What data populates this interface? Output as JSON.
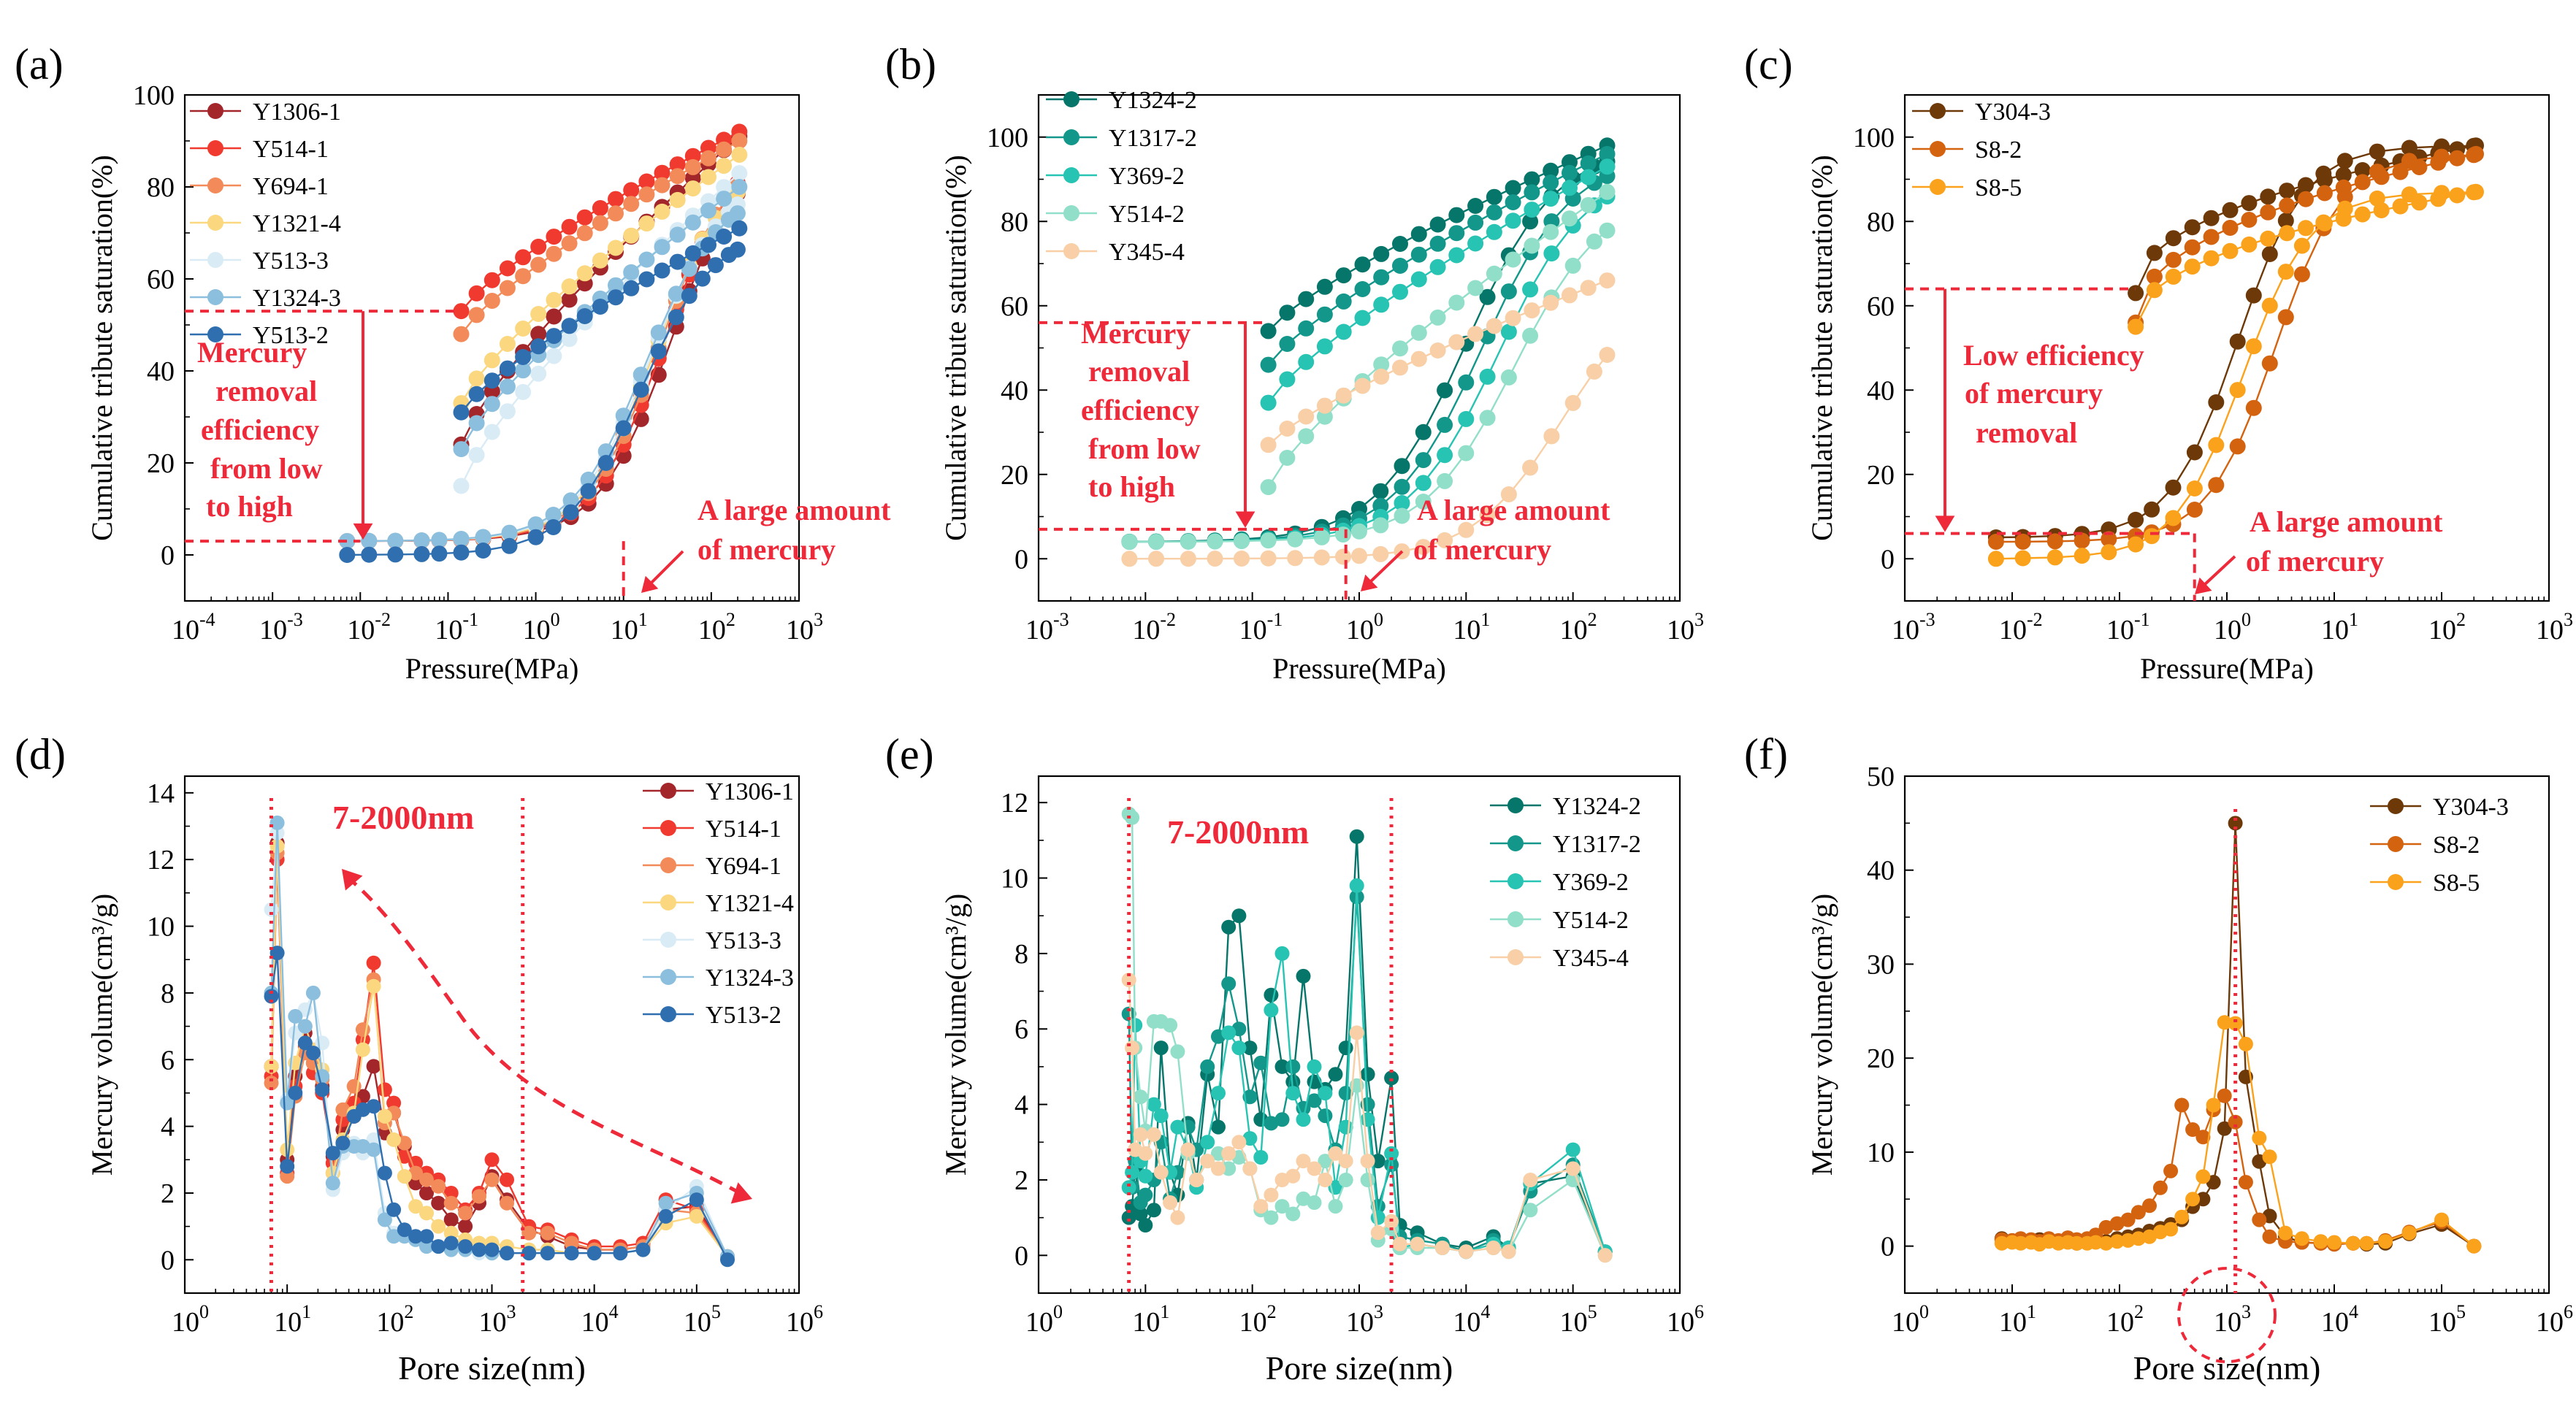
{
  "palettes": {
    "red": [
      "#a3262b",
      "#f13a2f",
      "#f28a59",
      "#fbd77f",
      "#d9ecf6",
      "#8cbfde",
      "#2f6fb0"
    ],
    "teal": [
      "#06756a",
      "#12978a",
      "#27c3b3",
      "#92dfc9",
      "#f8cfa6"
    ],
    "orange": [
      "#6e3908",
      "#d46310",
      "#fba21c"
    ],
    "annotation": "#ee2a3a"
  },
  "chart_data": [
    {
      "panel": "(a)",
      "type": "line",
      "xscale": "log",
      "xlim": [
        0.0001,
        1000
      ],
      "ylim": [
        -10,
        100
      ],
      "xlabel": "Pressure(MPa)",
      "ylabel": "Cumulative tribute saturation(%)",
      "xticks": [
        {
          "b": "10",
          "e": "-4"
        },
        {
          "b": "10",
          "e": "-3"
        },
        {
          "b": "10",
          "e": "-2"
        },
        {
          "b": "10",
          "e": "-1"
        },
        {
          "b": "10",
          "e": "0"
        },
        {
          "b": "10",
          "e": "1"
        },
        {
          "b": "10",
          "e": "2"
        },
        {
          "b": "10",
          "e": "3"
        }
      ],
      "yticks": [
        "0",
        "20",
        "40",
        "60",
        "80",
        "100"
      ],
      "ytick_values": [
        0,
        20,
        40,
        60,
        80,
        100
      ],
      "legend_position": "top-left",
      "series": [
        {
          "name": "Y1306-1",
          "start_intrusion": 3,
          "end_intrusion": 91,
          "start_extrusion": 24
        },
        {
          "name": "Y514-1",
          "start_intrusion": 3,
          "end_intrusion": 92,
          "start_extrusion": 53
        },
        {
          "name": "Y694-1",
          "start_intrusion": 3,
          "end_intrusion": 90,
          "start_extrusion": 48
        },
        {
          "name": "Y1321-4",
          "start_intrusion": 3,
          "end_intrusion": 87,
          "start_extrusion": 33
        },
        {
          "name": "Y513-3",
          "start_intrusion": 3,
          "end_intrusion": 83,
          "start_extrusion": 15
        },
        {
          "name": "Y1324-3",
          "start_intrusion": 3,
          "end_intrusion": 80,
          "start_extrusion": 23
        },
        {
          "name": "Y513-2",
          "start_intrusion": 0,
          "end_intrusion": 71,
          "start_extrusion": 31
        }
      ],
      "annotations": [
        "Mercury",
        "removal",
        "efficiency",
        "from low",
        "to high",
        "A large amount",
        "of mercury"
      ]
    },
    {
      "panel": "(b)",
      "type": "line",
      "xscale": "log",
      "xlim": [
        0.001,
        1000
      ],
      "ylim": [
        -10,
        110
      ],
      "xlabel": "Pressure(MPa)",
      "ylabel": "Cumulative tribute saturation(%)",
      "xticks": [
        {
          "b": "10",
          "e": "-3"
        },
        {
          "b": "10",
          "e": "-2"
        },
        {
          "b": "10",
          "e": "-1"
        },
        {
          "b": "10",
          "e": "0"
        },
        {
          "b": "10",
          "e": "1"
        },
        {
          "b": "10",
          "e": "2"
        },
        {
          "b": "10",
          "e": "3"
        }
      ],
      "yticks": [
        "0",
        "20",
        "40",
        "60",
        "80",
        "100"
      ],
      "ytick_values": [
        0,
        20,
        40,
        60,
        80,
        100
      ],
      "legend_position": "top-left",
      "series": [
        {
          "name": "Y1324-2",
          "start_intrusion": 4,
          "end_intrusion": 98,
          "start_extrusion": 54
        },
        {
          "name": "Y1317-2",
          "start_intrusion": 4,
          "end_intrusion": 96,
          "start_extrusion": 46
        },
        {
          "name": "Y369-2",
          "start_intrusion": 4,
          "end_intrusion": 93,
          "start_extrusion": 37
        },
        {
          "name": "Y514-2",
          "start_intrusion": 4,
          "end_intrusion": 87,
          "start_extrusion": 17
        },
        {
          "name": "Y345-4",
          "start_intrusion": 0,
          "end_intrusion": 66,
          "start_extrusion": 27
        }
      ],
      "annotations": [
        "Mercury",
        "removal",
        "efficiency",
        "from low",
        "to high",
        "A large amount",
        "of mercury"
      ]
    },
    {
      "panel": "(c)",
      "type": "line",
      "xscale": "log",
      "xlim": [
        0.001,
        1000
      ],
      "ylim": [
        -10,
        110
      ],
      "xlabel": "Pressure(MPa)",
      "ylabel": "Cumulative tribute saturation(%)",
      "xticks": [
        {
          "b": "10",
          "e": "-3"
        },
        {
          "b": "10",
          "e": "-2"
        },
        {
          "b": "10",
          "e": "-1"
        },
        {
          "b": "10",
          "e": "0"
        },
        {
          "b": "10",
          "e": "1"
        },
        {
          "b": "10",
          "e": "2"
        },
        {
          "b": "10",
          "e": "3"
        }
      ],
      "yticks": [
        "0",
        "20",
        "40",
        "60",
        "80",
        "100"
      ],
      "ytick_values": [
        0,
        20,
        40,
        60,
        80,
        100
      ],
      "legend_position": "top-left",
      "series": [
        {
          "name": "Y304-3",
          "start_intrusion": 5,
          "end_intrusion": 98,
          "start_extrusion": 63
        },
        {
          "name": "S8-2",
          "start_intrusion": 4,
          "end_intrusion": 96,
          "start_extrusion": 56
        },
        {
          "name": "S8-5",
          "start_intrusion": 0,
          "end_intrusion": 87,
          "start_extrusion": 55
        }
      ],
      "annotations": [
        "Low efficiency",
        "of mercury",
        "removal",
        "A large amount",
        "of mercury"
      ]
    },
    {
      "panel": "(d)",
      "type": "line",
      "xscale": "log",
      "xlim": [
        1,
        1000000
      ],
      "ylim": [
        -1,
        14.5
      ],
      "xlabel": "Pore size(nm)",
      "ylabel": "Mercury volume(cm³/g)",
      "xticks": [
        {
          "b": "10",
          "e": "0"
        },
        {
          "b": "10",
          "e": "1"
        },
        {
          "b": "10",
          "e": "2"
        },
        {
          "b": "10",
          "e": "3"
        },
        {
          "b": "10",
          "e": "4"
        },
        {
          "b": "10",
          "e": "5"
        },
        {
          "b": "10",
          "e": "6"
        }
      ],
      "yticks": [
        "0",
        "2",
        "4",
        "6",
        "8",
        "10",
        "12",
        "14"
      ],
      "ytick_values": [
        0,
        2,
        4,
        6,
        8,
        10,
        12,
        14
      ],
      "legend_position": "top-right",
      "series_names": [
        "Y1306-1",
        "Y514-1",
        "Y694-1",
        "Y1321-4",
        "Y513-3",
        "Y1324-3",
        "Y513-2"
      ],
      "x": [
        7,
        8,
        10,
        12,
        15,
        18,
        22,
        28,
        35,
        45,
        55,
        70,
        90,
        110,
        140,
        180,
        230,
        300,
        400,
        550,
        750,
        1000,
        1400,
        2300,
        3500,
        6000,
        10000,
        18000,
        30000,
        50000,
        100000,
        200000
      ],
      "series": [
        [
          5.8,
          12.5,
          3.0,
          5.5,
          6.8,
          5.9,
          5.2,
          3.1,
          3.9,
          4.3,
          4.9,
          5.8,
          3.8,
          4.4,
          3.4,
          2.3,
          2.0,
          1.7,
          1.2,
          1.0,
          1.7,
          2.5,
          1.8,
          0.9,
          0.7,
          0.4,
          0.3,
          0.3,
          0.4,
          1.5,
          1.6,
          0.1
        ],
        [
          5.5,
          12.0,
          2.6,
          5.2,
          6.4,
          5.6,
          5.0,
          2.9,
          4.2,
          4.7,
          6.6,
          8.9,
          5.1,
          4.7,
          3.1,
          2.9,
          2.6,
          2.4,
          2.0,
          1.5,
          2.0,
          3.0,
          2.4,
          1.0,
          0.9,
          0.6,
          0.4,
          0.4,
          0.5,
          1.8,
          1.5,
          0.1
        ],
        [
          5.3,
          12.2,
          2.5,
          4.9,
          6.2,
          5.9,
          5.4,
          2.6,
          4.5,
          5.2,
          6.9,
          8.4,
          4.1,
          4.4,
          3.5,
          2.6,
          2.4,
          2.2,
          1.7,
          1.4,
          1.9,
          2.4,
          1.7,
          0.8,
          0.8,
          0.5,
          0.3,
          0.3,
          0.4,
          1.5,
          1.4,
          0.1
        ],
        [
          5.8,
          12.4,
          3.3,
          5.9,
          7.0,
          6.3,
          5.7,
          2.6,
          3.6,
          4.4,
          6.3,
          8.2,
          4.3,
          3.6,
          2.5,
          1.6,
          1.4,
          1.0,
          0.8,
          0.6,
          0.5,
          0.5,
          0.4,
          0.3,
          0.3,
          0.2,
          0.2,
          0.2,
          0.3,
          1.1,
          1.3,
          0.1
        ],
        [
          10.5,
          12.8,
          4.8,
          6.8,
          7.5,
          8.0,
          6.5,
          2.1,
          3.2,
          3.5,
          3.2,
          3.6,
          1.4,
          0.8,
          0.8,
          0.6,
          0.5,
          0.4,
          0.3,
          0.3,
          0.2,
          0.2,
          0.2,
          0.2,
          0.2,
          0.2,
          0.2,
          0.2,
          0.3,
          1.5,
          2.2,
          0.1
        ],
        [
          8.0,
          13.1,
          4.7,
          7.3,
          7.0,
          8.0,
          5.5,
          2.3,
          3.4,
          3.4,
          3.4,
          3.3,
          1.2,
          0.7,
          0.7,
          0.6,
          0.4,
          0.4,
          0.3,
          0.3,
          0.3,
          0.2,
          0.2,
          0.2,
          0.2,
          0.2,
          0.2,
          0.2,
          0.3,
          1.7,
          2.0,
          0.1
        ],
        [
          7.9,
          9.2,
          2.8,
          5.0,
          6.5,
          6.2,
          5.1,
          3.2,
          3.5,
          4.3,
          4.5,
          4.6,
          2.6,
          1.5,
          0.9,
          0.7,
          0.7,
          0.4,
          0.5,
          0.4,
          0.3,
          0.3,
          0.2,
          0.2,
          0.2,
          0.2,
          0.2,
          0.2,
          0.3,
          1.3,
          1.8,
          0.0
        ]
      ],
      "range_label": "7-2000nm",
      "range_lines_x": [
        7,
        2000
      ]
    },
    {
      "panel": "(e)",
      "type": "line",
      "xscale": "log",
      "xlim": [
        1,
        1000000
      ],
      "ylim": [
        -1,
        12.7
      ],
      "xlabel": "Pore size(nm)",
      "ylabel": "Mercury volume(cm³/g)",
      "xticks": [
        {
          "b": "10",
          "e": "0"
        },
        {
          "b": "10",
          "e": "1"
        },
        {
          "b": "10",
          "e": "2"
        },
        {
          "b": "10",
          "e": "3"
        },
        {
          "b": "10",
          "e": "4"
        },
        {
          "b": "10",
          "e": "5"
        },
        {
          "b": "10",
          "e": "6"
        }
      ],
      "yticks": [
        "0",
        "2",
        "4",
        "6",
        "8",
        "10",
        "12"
      ],
      "ytick_values": [
        0,
        2,
        4,
        6,
        8,
        10,
        12
      ],
      "legend_position": "top-right",
      "series_names": [
        "Y1324-2",
        "Y1317-2",
        "Y369-2",
        "Y514-2",
        "Y345-4"
      ],
      "x": [
        7,
        7.5,
        8,
        9,
        10,
        12,
        14,
        17,
        20,
        25,
        30,
        38,
        48,
        60,
        75,
        95,
        120,
        150,
        190,
        240,
        300,
        380,
        480,
        600,
        750,
        950,
        1200,
        1500,
        2000,
        2400,
        3500,
        6000,
        10000,
        18000,
        25000,
        40000,
        100000,
        200000
      ],
      "series": [
        [
          1.0,
          1.3,
          2.3,
          1.1,
          0.8,
          1.2,
          5.5,
          2.2,
          1.6,
          3.5,
          2.0,
          4.8,
          3.4,
          8.7,
          9.0,
          5.5,
          3.6,
          6.9,
          5.0,
          4.6,
          7.4,
          4.6,
          4.4,
          4.8,
          5.5,
          11.1,
          4.8,
          2.5,
          4.7,
          0.8,
          0.6,
          0.3,
          0.2,
          0.5,
          0.2,
          1.9,
          2.1,
          0.1
        ],
        [
          6.4,
          1.8,
          2.5,
          1.4,
          1.6,
          2.0,
          3.0,
          1.5,
          2.2,
          3.4,
          2.8,
          5.0,
          5.8,
          7.2,
          6.0,
          4.2,
          5.1,
          3.5,
          3.6,
          5.0,
          3.9,
          4.1,
          3.7,
          2.8,
          4.3,
          9.5,
          4.0,
          1.3,
          2.4,
          0.5,
          0.4,
          0.3,
          0.1,
          0.4,
          0.2,
          1.7,
          2.4,
          0.1
        ],
        [
          1.8,
          2.2,
          6.1,
          2.5,
          2.1,
          4.0,
          3.7,
          2.2,
          3.4,
          2.8,
          1.8,
          3.0,
          4.3,
          5.9,
          5.5,
          3.1,
          2.6,
          6.5,
          8.0,
          4.3,
          3.6,
          5.0,
          4.3,
          1.8,
          3.4,
          9.8,
          3.6,
          1.0,
          2.7,
          0.2,
          0.3,
          0.2,
          0.1,
          0.3,
          0.2,
          1.9,
          2.8,
          0.1
        ],
        [
          11.7,
          11.6,
          5.5,
          4.2,
          3.3,
          6.2,
          6.2,
          6.1,
          5.4,
          2.7,
          2.0,
          2.5,
          2.7,
          2.3,
          2.6,
          2.3,
          1.2,
          1.0,
          1.3,
          1.1,
          1.5,
          1.4,
          2.5,
          1.3,
          2.0,
          4.5,
          2.0,
          0.4,
          0.7,
          0.2,
          0.2,
          0.2,
          0.1,
          0.2,
          0.1,
          1.2,
          2.0,
          0.0
        ],
        [
          7.3,
          5.5,
          2.8,
          3.2,
          2.7,
          3.2,
          2.2,
          1.4,
          1.0,
          2.8,
          2.0,
          2.5,
          2.3,
          2.7,
          3.0,
          2.3,
          1.3,
          1.6,
          2.0,
          2.1,
          2.5,
          2.3,
          2.0,
          2.7,
          2.5,
          5.9,
          2.5,
          0.6,
          0.9,
          0.3,
          0.3,
          0.2,
          0.1,
          0.2,
          0.1,
          2.0,
          2.3,
          0.0
        ]
      ],
      "range_label": "7-2000nm",
      "range_lines_x": [
        7,
        2000
      ]
    },
    {
      "panel": "(f)",
      "type": "line",
      "xscale": "log",
      "xlim": [
        1,
        1000000
      ],
      "ylim": [
        -5,
        50
      ],
      "xlabel": "Pore size(nm)",
      "ylabel": "Mercury volume(cm³/g)",
      "xticks": [
        {
          "b": "10",
          "e": "0"
        },
        {
          "b": "10",
          "e": "1"
        },
        {
          "b": "10",
          "e": "2"
        },
        {
          "b": "10",
          "e": "3"
        },
        {
          "b": "10",
          "e": "4"
        },
        {
          "b": "10",
          "e": "5"
        },
        {
          "b": "10",
          "e": "6"
        }
      ],
      "yticks": [
        "0",
        "10",
        "20",
        "30",
        "40",
        "50"
      ],
      "ytick_values": [
        0,
        10,
        20,
        30,
        40,
        50
      ],
      "legend_position": "top-right",
      "series_names": [
        "Y304-3",
        "S8-2",
        "S8-5"
      ],
      "x": [
        8,
        10,
        12,
        15,
        18,
        22,
        27,
        33,
        40,
        50,
        60,
        75,
        95,
        120,
        150,
        190,
        240,
        300,
        380,
        480,
        600,
        750,
        950,
        1200,
        1500,
        2000,
        2500,
        3500,
        5000,
        7500,
        10000,
        15000,
        20000,
        30000,
        50000,
        100000,
        200000
      ],
      "series": [
        [
          0.8,
          0.6,
          0.5,
          0.5,
          0.7,
          0.6,
          0.4,
          0.6,
          0.3,
          0.5,
          0.7,
          0.5,
          0.8,
          1.0,
          1.2,
          1.6,
          1.9,
          2.3,
          2.8,
          4.2,
          5.0,
          6.8,
          12.5,
          45.0,
          18.0,
          9.0,
          3.2,
          1.0,
          0.4,
          0.3,
          0.2,
          0.3,
          0.2,
          0.3,
          1.3,
          2.3,
          0.0
        ],
        [
          0.7,
          0.6,
          0.8,
          0.7,
          0.5,
          0.8,
          0.6,
          0.9,
          0.7,
          0.8,
          1.2,
          2.0,
          2.4,
          2.8,
          3.6,
          4.3,
          6.2,
          8.0,
          15.0,
          12.4,
          11.6,
          14.5,
          16.0,
          13.2,
          6.8,
          2.8,
          1.0,
          0.5,
          0.4,
          0.3,
          0.2,
          0.3,
          0.3,
          0.6,
          1.5,
          2.6,
          0.0
        ],
        [
          0.3,
          0.4,
          0.3,
          0.4,
          0.2,
          0.5,
          0.3,
          0.4,
          0.3,
          0.3,
          0.4,
          0.3,
          0.5,
          0.6,
          0.8,
          1.0,
          1.5,
          1.8,
          3.1,
          5.0,
          7.4,
          15.0,
          23.8,
          23.7,
          21.5,
          11.5,
          9.5,
          1.4,
          0.8,
          0.5,
          0.4,
          0.3,
          0.3,
          0.5,
          1.4,
          2.8,
          0.0
        ]
      ],
      "peak_line_x": 1200
    }
  ],
  "panel_labels": [
    "(a)",
    "(b)",
    "(c)",
    "(d)",
    "(e)",
    "(f)"
  ]
}
